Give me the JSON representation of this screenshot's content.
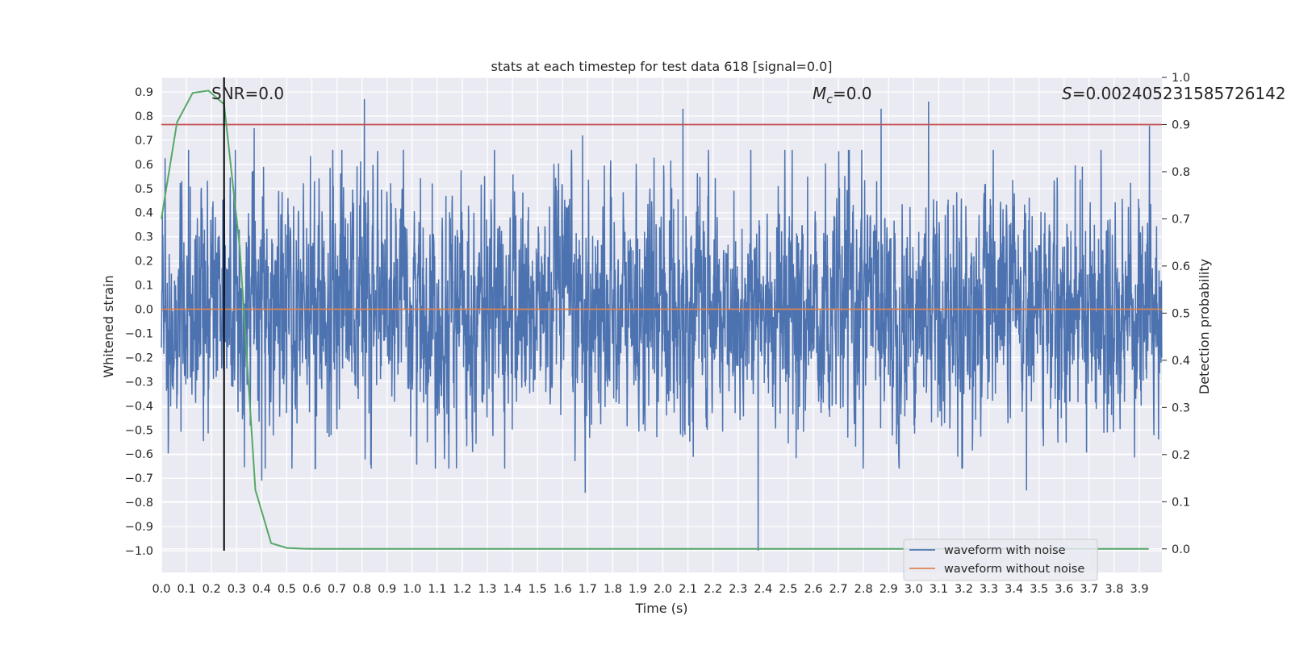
{
  "chart_data": {
    "type": "line",
    "title": "stats at each timestep for test data 618 [signal=0.0]",
    "xlabel": "Time (s)",
    "ylabel_left": "Whitened strain",
    "ylabel_right": "Detection probability",
    "xlim": [
      0.0,
      3.99
    ],
    "ylim_left": [
      -1.09,
      0.96
    ],
    "ylim_right": [
      -0.05,
      1.0
    ],
    "x_ticks": [
      "0.0",
      "0.1",
      "0.2",
      "0.3",
      "0.4",
      "0.5",
      "0.6",
      "0.7",
      "0.8",
      "0.9",
      "1.0",
      "1.1",
      "1.2",
      "1.3",
      "1.4",
      "1.5",
      "1.6",
      "1.7",
      "1.8",
      "1.9",
      "2.0",
      "2.1",
      "2.2",
      "2.3",
      "2.4",
      "2.5",
      "2.6",
      "2.7",
      "2.8",
      "2.9",
      "3.0",
      "3.1",
      "3.2",
      "3.3",
      "3.4",
      "3.5",
      "3.6",
      "3.7",
      "3.8",
      "3.9"
    ],
    "y_ticks_left": [
      "0.9",
      "0.8",
      "0.7",
      "0.6",
      "0.5",
      "0.4",
      "0.3",
      "0.2",
      "0.1",
      "0.0",
      "−0.1",
      "−0.2",
      "−0.3",
      "−0.4",
      "−0.5",
      "−0.6",
      "−0.7",
      "−0.8",
      "−0.9",
      "−1.0"
    ],
    "y_ticks_right": [
      "1.0",
      "0.9",
      "0.8",
      "0.7",
      "0.6",
      "0.5",
      "0.4",
      "0.3",
      "0.2",
      "0.1",
      "0.0"
    ],
    "annotations": {
      "snr": "SNR=0.0",
      "mc_symbol": "M",
      "mc_sub": "c",
      "mc_value": "=0.0",
      "s_symbol": "S",
      "s_value": "=0.002405231585726142"
    },
    "threshold_probability": 0.9,
    "marker_time": 0.25,
    "noise_sample_rate": 1024,
    "noise_amplitude_approx": 0.5,
    "noise_notable_spikes": [
      {
        "x": 0.81,
        "y": 0.87
      },
      {
        "x": 3.06,
        "y": 0.86
      },
      {
        "x": 2.08,
        "y": 0.83
      },
      {
        "x": 2.87,
        "y": 0.83
      },
      {
        "x": 3.94,
        "y": 0.76
      },
      {
        "x": 0.37,
        "y": 0.75
      },
      {
        "x": 1.68,
        "y": 0.72
      },
      {
        "x": 2.38,
        "y": -1.0
      },
      {
        "x": 1.69,
        "y": -0.76
      },
      {
        "x": 3.45,
        "y": -0.75
      },
      {
        "x": 0.4,
        "y": -0.71
      }
    ],
    "series": [
      {
        "name": "waveform with noise",
        "color": "#4c72b0",
        "description_points": "dense noise"
      },
      {
        "name": "waveform without noise",
        "color": "#dd8452",
        "y_constant": 0.0
      }
    ],
    "detection_probability": {
      "color": "#55a868",
      "x": [
        0.0,
        0.0625,
        0.125,
        0.1875,
        0.25,
        0.3125,
        0.375,
        0.4375,
        0.5,
        0.5625,
        0.625,
        3.9375
      ],
      "y": [
        0.7,
        0.905,
        0.967,
        0.972,
        0.943,
        0.64,
        0.125,
        0.012,
        0.002,
        0.0005,
        0.0,
        0.0
      ]
    },
    "legend_position": "lower right",
    "grid": true,
    "colors": {
      "background": "#eaeaf2",
      "grid": "#ffffff",
      "threshold": "#c44e52",
      "marker": "#000000"
    }
  }
}
